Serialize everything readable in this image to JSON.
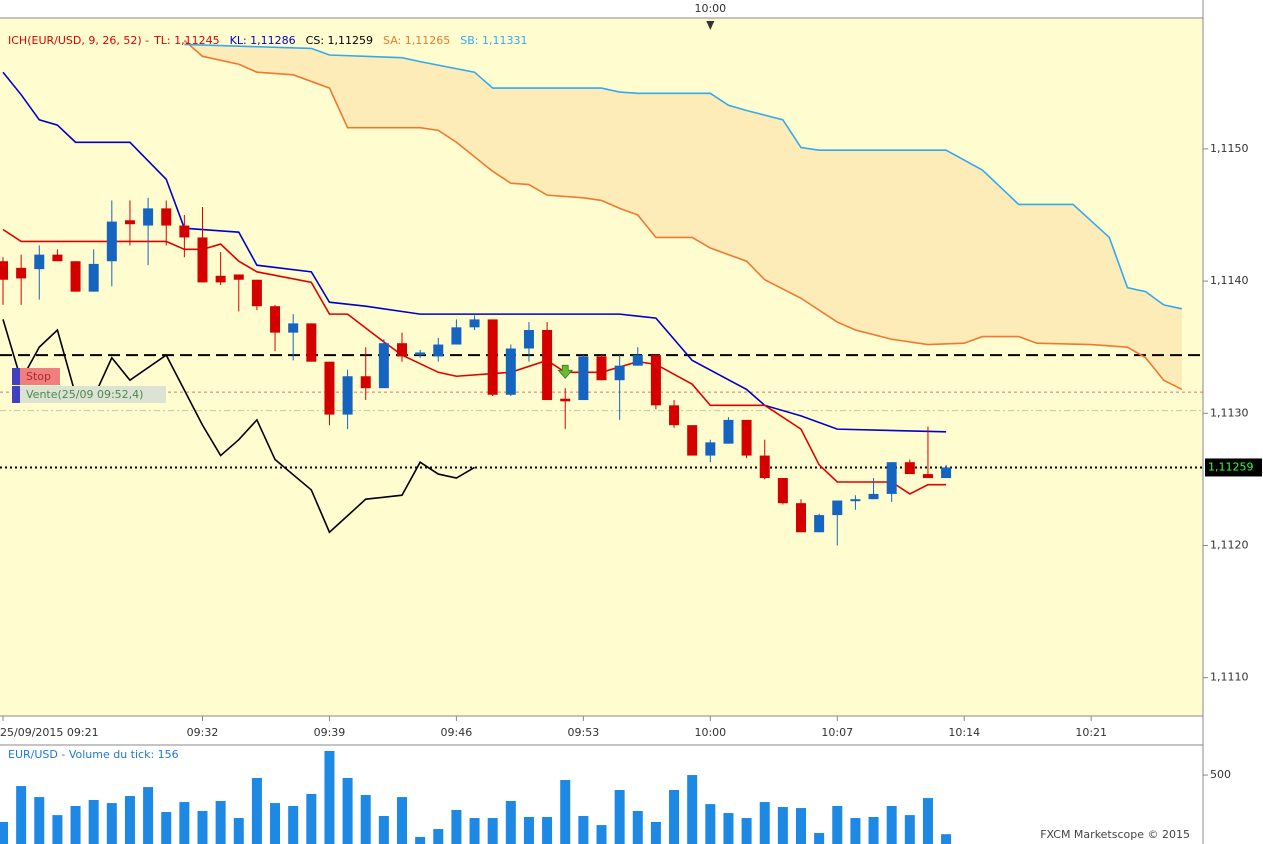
{
  "chart_data": {
    "type": "candlestick",
    "indicator_label": "ICH(EUR/USD, 9, 26, 52) -",
    "categories": [
      "09:21",
      "09:22",
      "09:23",
      "09:24",
      "09:25",
      "09:26",
      "09:27",
      "09:28",
      "09:29",
      "09:30",
      "09:31",
      "09:32",
      "09:33",
      "09:34",
      "09:35",
      "09:36",
      "09:37",
      "09:38",
      "09:39",
      "09:40",
      "09:41",
      "09:42",
      "09:43",
      "09:44",
      "09:45",
      "09:46",
      "09:47",
      "09:48",
      "09:49",
      "09:50",
      "09:51",
      "09:52",
      "09:53",
      "09:54",
      "09:55",
      "09:56",
      "09:57",
      "09:58",
      "09:59",
      "10:00",
      "10:01",
      "10:02",
      "10:03",
      "10:04",
      "10:05",
      "10:06",
      "10:07",
      "10:08",
      "10:09",
      "10:10",
      "10:11",
      "10:12",
      "10:13"
    ],
    "open": [
      1.11415,
      1.1141,
      1.11409,
      1.1142,
      1.11415,
      1.11392,
      1.11415,
      1.11446,
      1.11442,
      1.11455,
      1.11442,
      1.11433,
      1.11404,
      1.11405,
      1.11401,
      1.11381,
      1.11361,
      1.11368,
      1.11339,
      1.11299,
      1.11328,
      1.11319,
      1.11353,
      1.11344,
      1.11343,
      1.11352,
      1.11365,
      1.11371,
      1.11314,
      1.11349,
      1.11363,
      1.11311,
      1.1131,
      1.11343,
      1.11325,
      1.11336,
      1.11344,
      1.11306,
      1.11291,
      1.11268,
      1.11277,
      1.11295,
      1.11268,
      1.11251,
      1.11232,
      1.1121,
      1.11223,
      1.11234,
      1.11235,
      1.11239,
      1.11263,
      1.11254,
      1.11251
    ],
    "high": [
      1.11418,
      1.1142,
      1.11427,
      1.11424,
      1.11415,
      1.11424,
      1.11461,
      1.11461,
      1.11463,
      1.11461,
      1.1145,
      1.11456,
      1.11422,
      1.11405,
      1.11401,
      1.11382,
      1.11375,
      1.11368,
      1.11339,
      1.11333,
      1.1135,
      1.11356,
      1.11361,
      1.11348,
      1.11357,
      1.11371,
      1.11374,
      1.11371,
      1.11352,
      1.11369,
      1.11369,
      1.11319,
      1.11344,
      1.11344,
      1.11344,
      1.1135,
      1.11344,
      1.1131,
      1.11291,
      1.1128,
      1.11297,
      1.11295,
      1.1128,
      1.11251,
      1.11235,
      1.11224,
      1.11234,
      1.11238,
      1.11251,
      1.11263,
      1.11265,
      1.1129,
      1.11261
    ],
    "low": [
      1.11382,
      1.11382,
      1.11386,
      1.11415,
      1.11392,
      1.11392,
      1.11396,
      1.11427,
      1.11412,
      1.11427,
      1.11418,
      1.11399,
      1.11397,
      1.11377,
      1.11378,
      1.11347,
      1.1134,
      1.11339,
      1.11291,
      1.11288,
      1.1131,
      1.11319,
      1.11339,
      1.11342,
      1.11339,
      1.11352,
      1.11363,
      1.11313,
      1.11313,
      1.11339,
      1.1131,
      1.11288,
      1.1131,
      1.11325,
      1.11295,
      1.11336,
      1.11303,
      1.11289,
      1.11268,
      1.11263,
      1.11277,
      1.11266,
      1.1125,
      1.11231,
      1.1121,
      1.1121,
      1.112,
      1.11227,
      1.11235,
      1.11233,
      1.11254,
      1.11251,
      1.11251
    ],
    "close": [
      1.11401,
      1.11402,
      1.1142,
      1.11415,
      1.11392,
      1.11413,
      1.11445,
      1.11443,
      1.11455,
      1.11442,
      1.11433,
      1.11399,
      1.11399,
      1.11401,
      1.11381,
      1.11361,
      1.11368,
      1.11339,
      1.11299,
      1.11328,
      1.11319,
      1.11353,
      1.11343,
      1.11346,
      1.11352,
      1.11365,
      1.11371,
      1.11314,
      1.11349,
      1.11363,
      1.1131,
      1.11309,
      1.11343,
      1.11325,
      1.11336,
      1.11344,
      1.11306,
      1.11291,
      1.11268,
      1.11278,
      1.11295,
      1.11268,
      1.11251,
      1.11232,
      1.1121,
      1.11223,
      1.11234,
      1.11235,
      1.11239,
      1.11263,
      1.11254,
      1.11251,
      1.11259
    ],
    "up_color": "#1565c0",
    "down_color": "#d40000",
    "background": "#fffdd0",
    "xlim": [
      "09:21",
      "10:27"
    ],
    "xticks": [
      {
        "value": "09:21",
        "label": "25/09/2015 09:21"
      },
      "09:32",
      "09:39",
      "09:46",
      "09:53",
      "10:00",
      "10:07",
      "10:14",
      "10:21"
    ],
    "top_tick": "10:00",
    "ylim": [
      1.11071,
      1.11599
    ],
    "yticks": [
      {
        "value": 1.115,
        "label": "1,1150"
      },
      {
        "value": 1.114,
        "label": "1,1140"
      },
      {
        "value": 1.113,
        "label": "1,1130"
      },
      {
        "value": 1.112,
        "label": "1,1120"
      },
      {
        "value": 1.111,
        "label": "1,1110"
      }
    ],
    "series": [
      {
        "label": "TL: 1,11245",
        "color": "#e00000",
        "x": [
          "09:21",
          "09:22",
          "09:30",
          "09:31",
          "09:32",
          "09:33",
          "09:34",
          "09:35",
          "09:38",
          "09:39",
          "09:40",
          "09:42",
          "09:43",
          "09:45",
          "09:46",
          "09:48",
          "09:49",
          "09:51",
          "09:52",
          "09:54",
          "09:56",
          "09:57",
          "09:59",
          "10:00",
          "10:03",
          "10:05",
          "10:06",
          "10:07",
          "10:10",
          "10:11",
          "10:12",
          "10:13"
        ],
        "values": [
          1.11439,
          1.1143,
          1.1143,
          1.11424,
          1.11424,
          1.11428,
          1.11415,
          1.11407,
          1.11399,
          1.11375,
          1.11375,
          1.11354,
          1.11344,
          1.11331,
          1.11328,
          1.1133,
          1.11331,
          1.1134,
          1.11331,
          1.11331,
          1.11339,
          1.11337,
          1.11322,
          1.11306,
          1.11306,
          1.11288,
          1.11261,
          1.11248,
          1.11248,
          1.11239,
          1.11246,
          1.11246
        ]
      },
      {
        "label": "KL: 1,11286",
        "color": "#0000cc",
        "x": [
          "09:21",
          "09:22",
          "09:23",
          "09:24",
          "09:25",
          "09:28",
          "09:30",
          "09:31",
          "09:32",
          "09:34",
          "09:35",
          "09:38",
          "09:39",
          "09:41",
          "09:44",
          "09:55",
          "09:57",
          "09:59",
          "10:02",
          "10:03",
          "10:05",
          "10:07",
          "10:13"
        ],
        "values": [
          1.11558,
          1.11541,
          1.11522,
          1.11518,
          1.11505,
          1.11505,
          1.11477,
          1.1144,
          1.11439,
          1.11437,
          1.11412,
          1.11407,
          1.11384,
          1.11381,
          1.11375,
          1.11375,
          1.11372,
          1.1134,
          1.11318,
          1.11306,
          1.11298,
          1.11288,
          1.11286
        ]
      },
      {
        "label": "CS: 1,11259",
        "color": "#000000",
        "x": [
          "09:21",
          "09:22",
          "09:23",
          "09:24",
          "09:25",
          "09:26",
          "09:27",
          "09:28",
          "09:30",
          "09:32",
          "09:33",
          "09:34",
          "09:35",
          "09:36",
          "09:38",
          "09:39",
          "09:41",
          "09:43",
          "09:44",
          "09:45",
          "09:46",
          "09:47"
        ],
        "values": [
          1.11371,
          1.11325,
          1.1135,
          1.11363,
          1.11314,
          1.11312,
          1.11342,
          1.11325,
          1.11344,
          1.11291,
          1.11268,
          1.1128,
          1.11295,
          1.11265,
          1.11242,
          1.1121,
          1.11235,
          1.11238,
          1.11263,
          1.11254,
          1.11251,
          1.11259
        ]
      },
      {
        "label": "SA: 1,11265",
        "color": "#f07830",
        "x": [
          "09:31",
          "09:32",
          "09:34",
          "09:35",
          "09:37",
          "09:39",
          "09:40",
          "09:44",
          "09:45",
          "09:46",
          "09:48",
          "09:49",
          "09:50",
          "09:51",
          "09:53",
          "09:54",
          "09:55",
          "09:56",
          "09:57",
          "09:59",
          "10:00",
          "10:02",
          "10:03",
          "10:05",
          "10:07",
          "10:08",
          "10:10",
          "10:12",
          "10:14",
          "10:15",
          "10:17",
          "10:18",
          "10:21",
          "10:23",
          "10:24",
          "10:25",
          "10:26"
        ],
        "values": [
          1.11582,
          1.1157,
          1.11564,
          1.11558,
          1.11556,
          1.11546,
          1.11516,
          1.11516,
          1.11514,
          1.11505,
          1.11483,
          1.11474,
          1.11473,
          1.11465,
          1.11463,
          1.11461,
          1.11455,
          1.1145,
          1.11433,
          1.11433,
          1.11425,
          1.11415,
          1.11401,
          1.11387,
          1.11369,
          1.11363,
          1.11356,
          1.11352,
          1.11353,
          1.11358,
          1.11358,
          1.11353,
          1.11352,
          1.1135,
          1.11342,
          1.11325,
          1.11318
        ]
      },
      {
        "label": "SB: 1,11331",
        "color": "#33aaee",
        "x": [
          "09:31",
          "09:38",
          "09:39",
          "09:43",
          "09:44",
          "09:47",
          "09:48",
          "09:54",
          "09:55",
          "09:56",
          "10:00",
          "10:01",
          "10:02",
          "10:04",
          "10:05",
          "10:06",
          "10:13",
          "10:15",
          "10:16",
          "10:17",
          "10:20",
          "10:22",
          "10:23",
          "10:24",
          "10:25",
          "10:26"
        ],
        "values": [
          1.11579,
          1.11576,
          1.11571,
          1.11569,
          1.11566,
          1.11558,
          1.11546,
          1.11546,
          1.11543,
          1.11542,
          1.11542,
          1.11533,
          1.11529,
          1.11522,
          1.11501,
          1.11499,
          1.11499,
          1.11484,
          1.11471,
          1.11458,
          1.11458,
          1.11433,
          1.11395,
          1.11392,
          1.11382,
          1.11379
        ]
      }
    ],
    "cloud_color": "#f5b060",
    "levels": [
      {
        "value": 1.11344,
        "color": "#000000",
        "dash": "12 6",
        "width": 2
      },
      {
        "value": 1.11316,
        "color": "#e07070",
        "dash": "3 3",
        "width": 1
      },
      {
        "value": 1.11302,
        "color": "#c8c890",
        "dash": "6 3 2 3",
        "width": 1
      },
      {
        "value": 1.11259,
        "color": "#000000",
        "dash": "2 3",
        "width": 2
      }
    ],
    "last_price": {
      "value": 1.11259,
      "label": "1,11259"
    },
    "sell_arrow": {
      "time": "09:52",
      "value": 1.11331,
      "color": "#66bb33"
    },
    "order_labels": [
      "Stop",
      "Vente(25/09 09:52,4)"
    ],
    "volume": {
      "label": "EUR/USD - Volume du tick: 156",
      "color": "#1e88e5",
      "values": [
        227,
        436,
        372,
        267,
        320,
        355,
        337,
        378,
        430,
        285,
        343,
        291,
        349,
        250,
        483,
        337,
        320,
        390,
        640,
        483,
        384,
        262,
        372,
        140,
        186,
        297,
        250,
        250,
        349,
        256,
        256,
        471,
        262,
        209,
        413,
        291,
        227,
        413,
        500,
        331,
        279,
        250,
        343,
        314,
        308,
        163,
        320,
        250,
        256,
        320,
        267,
        366,
        156
      ],
      "ylim": [
        0,
        669
      ],
      "yticks": [
        500
      ]
    },
    "watermark": "FXCM Marketscope © 2015"
  }
}
